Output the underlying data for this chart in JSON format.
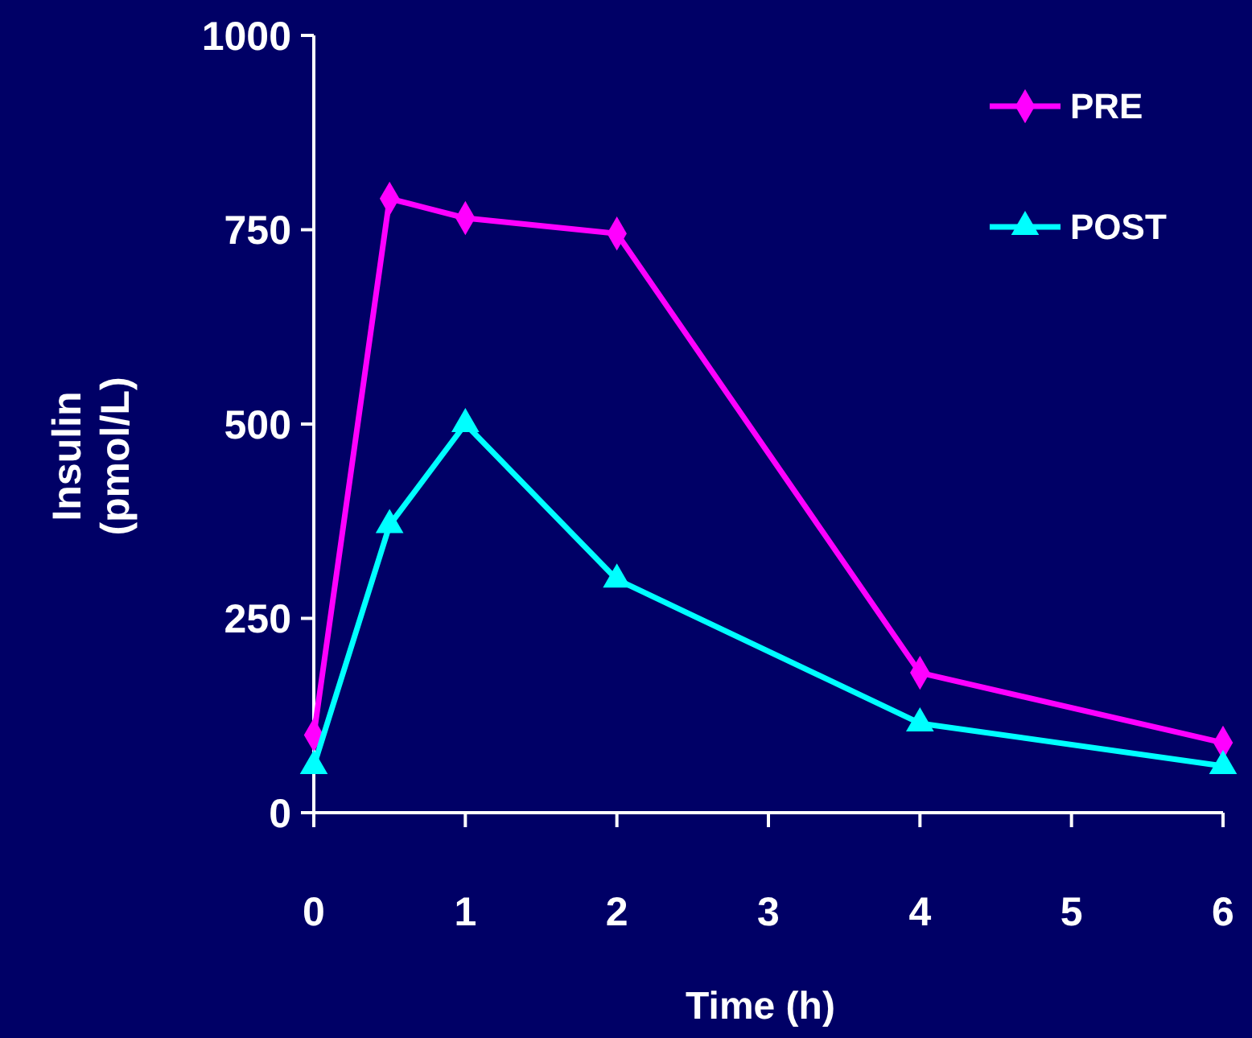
{
  "chart_data": {
    "type": "line",
    "xlabel": "Time (h)",
    "ylabel": "Insulin (pmol/L)",
    "xlim": [
      0,
      6
    ],
    "xticks": [
      0,
      1,
      2,
      3,
      4,
      5,
      6
    ],
    "ylim": [
      0,
      1000
    ],
    "yticks": [
      0,
      250,
      500,
      750,
      1000
    ],
    "x": [
      0,
      0.5,
      1,
      2,
      4,
      6
    ],
    "series": [
      {
        "name": "PRE",
        "color": "#ff00ff",
        "marker": "diamond",
        "values": [
          100,
          790,
          765,
          745,
          180,
          90
        ]
      },
      {
        "name": "POST",
        "color": "#00ffff",
        "marker": "triangle",
        "values": [
          60,
          370,
          500,
          300,
          115,
          60
        ]
      }
    ],
    "legend": "top right",
    "grid": false
  }
}
